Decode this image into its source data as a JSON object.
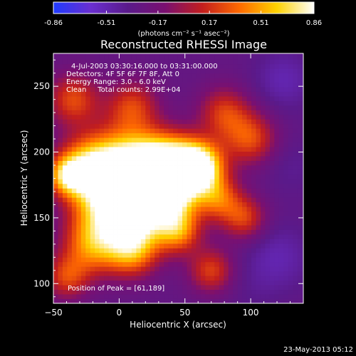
{
  "colorbar": {
    "ticks": [
      "-0.86",
      "-0.51",
      "-0.17",
      "0.17",
      "0.51",
      "0.86"
    ],
    "units_line": "(photons cm⁻² s⁻¹ asec⁻²)",
    "stops": [
      "#1f3bff",
      "#6a2fd0",
      "#5a1a8a",
      "#7a1070",
      "#c21e1e",
      "#ff6a00",
      "#ffd200",
      "#ffffff"
    ]
  },
  "plot": {
    "title": "Reconstructed RHESSI Image",
    "xlabel": "Heliocentric X (arcsec)",
    "ylabel": "Heliocentric Y (arcsec)",
    "info_lines": [
      "4-Jul-2003 03:30:16.000 to 03:31:00.000",
      "Detectors: 4F 5F 6F 7F 8F, Att 0",
      "Energy Range: 3.0 - 6.0 keV",
      "Clean     Total counts: 2.99E+04"
    ],
    "peak_label": "Position of Peak = [61,189]",
    "footer_date": "23-May-2013 05:12"
  },
  "chart_data": {
    "type": "heatmap",
    "title": "Reconstructed RHESSI Image",
    "xlabel": "Heliocentric X (arcsec)",
    "ylabel": "Heliocentric Y (arcsec)",
    "xlim": [
      -50,
      140
    ],
    "ylim": [
      85,
      275
    ],
    "x_ticks": [
      -50,
      0,
      50,
      100
    ],
    "y_ticks": [
      100,
      150,
      200,
      250
    ],
    "colorbar_range": [
      -0.86,
      0.86
    ],
    "colorbar_ticks": [
      -0.86,
      -0.51,
      -0.17,
      0.17,
      0.51,
      0.86
    ],
    "peak_position": [
      61,
      189
    ],
    "blobs": [
      {
        "x": 61,
        "y": 189,
        "v": 0.86,
        "s": 13
      },
      {
        "x": 40,
        "y": 190,
        "v": 0.7,
        "s": 16
      },
      {
        "x": 20,
        "y": 185,
        "v": 0.55,
        "s": 18
      },
      {
        "x": 0,
        "y": 190,
        "v": 0.5,
        "s": 20
      },
      {
        "x": -25,
        "y": 188,
        "v": 0.45,
        "s": 16
      },
      {
        "x": -40,
        "y": 182,
        "v": 0.4,
        "s": 10
      },
      {
        "x": -10,
        "y": 160,
        "v": 0.45,
        "s": 18
      },
      {
        "x": 15,
        "y": 150,
        "v": 0.45,
        "s": 16
      },
      {
        "x": -20,
        "y": 130,
        "v": 0.4,
        "s": 16
      },
      {
        "x": 10,
        "y": 125,
        "v": 0.4,
        "s": 14
      },
      {
        "x": 45,
        "y": 140,
        "v": 0.38,
        "s": 12
      },
      {
        "x": 40,
        "y": 165,
        "v": 0.45,
        "s": 14
      },
      {
        "x": 75,
        "y": 165,
        "v": 0.28,
        "s": 12
      },
      {
        "x": 95,
        "y": 150,
        "v": 0.22,
        "s": 12
      },
      {
        "x": 100,
        "y": 210,
        "v": 0.25,
        "s": 14
      },
      {
        "x": 80,
        "y": 230,
        "v": 0.2,
        "s": 14
      },
      {
        "x": -35,
        "y": 240,
        "v": 0.25,
        "s": 14
      },
      {
        "x": 10,
        "y": 235,
        "v": 0.2,
        "s": 14
      },
      {
        "x": -40,
        "y": 105,
        "v": 0.2,
        "s": 12
      },
      {
        "x": 70,
        "y": 110,
        "v": 0.22,
        "s": 12
      },
      {
        "x": 120,
        "y": 120,
        "v": -0.5,
        "s": 18
      },
      {
        "x": 130,
        "y": 190,
        "v": -0.4,
        "s": 16
      },
      {
        "x": 125,
        "y": 255,
        "v": -0.5,
        "s": 16
      },
      {
        "x": 100,
        "y": 95,
        "v": -0.35,
        "s": 14
      }
    ]
  }
}
